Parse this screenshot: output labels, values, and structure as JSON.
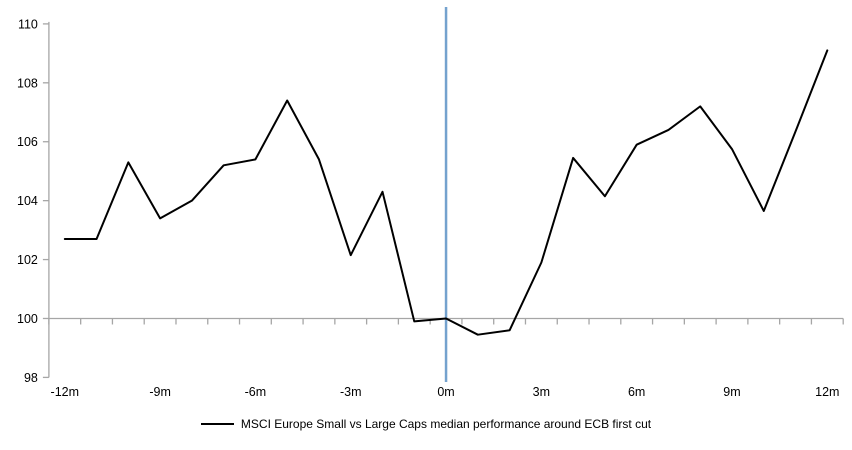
{
  "chart_data": {
    "type": "line",
    "x": [
      "-12m",
      "-11m",
      "-10m",
      "-9m",
      "-8m",
      "-7m",
      "-6m",
      "-5m",
      "-4m",
      "-3m",
      "-2m",
      "-1m",
      "0m",
      "1m",
      "2m",
      "3m",
      "4m",
      "5m",
      "6m",
      "7m",
      "8m",
      "9m",
      "10m",
      "11m",
      "12m"
    ],
    "series": [
      {
        "name": "MSCI Europe Small vs Large Caps median performance around ECB first cut",
        "values": [
          102.7,
          102.7,
          105.3,
          103.4,
          104.0,
          105.2,
          105.4,
          107.4,
          105.4,
          102.15,
          104.3,
          99.9,
          100.0,
          99.45,
          99.6,
          101.9,
          105.45,
          104.15,
          105.9,
          106.4,
          107.2,
          105.75,
          103.65,
          106.35,
          109.1
        ],
        "color": "#000000"
      }
    ],
    "title": "",
    "xlabel": "",
    "ylabel": "",
    "ylim": [
      98,
      110
    ],
    "ytick_labels": [
      "98",
      "100",
      "102",
      "104",
      "106",
      "108",
      "110"
    ],
    "xtick_labels": [
      "-12m",
      "-9m",
      "-6m",
      "-3m",
      "0m",
      "3m",
      "6m",
      "9m",
      "12m"
    ],
    "x_axis_crosses_at": 100,
    "grid": false,
    "legend_position": "bottom",
    "event_line": {
      "x": "0m",
      "color": "#74a2ce"
    },
    "colors": {
      "series": "#000000",
      "axis": "#a6a6a6",
      "event_line": "#74a2ce",
      "label_text": "#000000"
    }
  }
}
